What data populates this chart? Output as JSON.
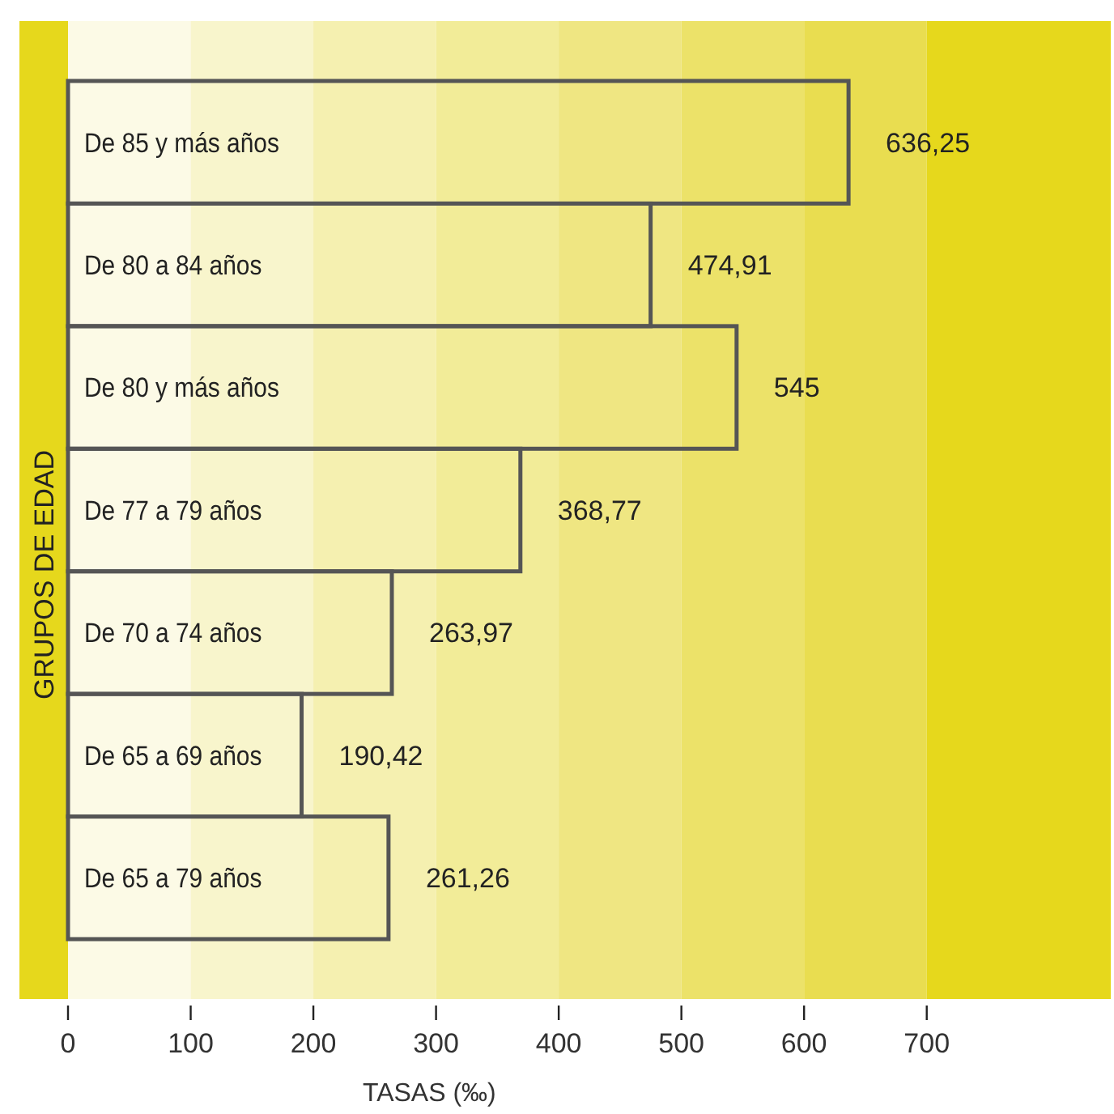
{
  "chart_data": {
    "type": "bar",
    "orientation": "horizontal",
    "xlabel": "TASAS (‰)",
    "ylabel": "GRUPOS DE EDAD",
    "categories": [
      "De 85 y más años",
      "De 80 a 84 años",
      "De 80 y más años",
      "De 77 a 79 años",
      "De 70 a 74 años",
      "De 65 a 69 años",
      "De 65 a 79 años"
    ],
    "values": [
      636.25,
      474.91,
      545,
      368.77,
      263.97,
      190.42,
      261.26
    ],
    "value_labels": [
      "636,25",
      "474,91",
      "545",
      "368,77",
      "263,97",
      "190,42",
      "261,26"
    ],
    "color": "#555555",
    "xlim": [
      0,
      850
    ],
    "xticks": [
      0,
      100,
      200,
      300,
      400,
      500,
      600,
      700
    ],
    "bands": [
      {
        "axis": "x",
        "from": 0,
        "to": 100,
        "color": "#fcfae6"
      },
      {
        "axis": "x",
        "from": 100,
        "to": 200,
        "color": "#f8f5cc"
      },
      {
        "axis": "x",
        "from": 200,
        "to": 300,
        "color": "#f5f0b0"
      },
      {
        "axis": "x",
        "from": 300,
        "to": 400,
        "color": "#f2ec98"
      },
      {
        "axis": "x",
        "from": 400,
        "to": 500,
        "color": "#efe682"
      },
      {
        "axis": "x",
        "from": 500,
        "to": 600,
        "color": "#ece269"
      },
      {
        "axis": "x",
        "from": 600,
        "to": 700,
        "color": "#e9dd50"
      },
      {
        "axis": "x",
        "from": 700,
        "to": 850,
        "color": "#e6d81c"
      }
    ],
    "grid": false
  }
}
